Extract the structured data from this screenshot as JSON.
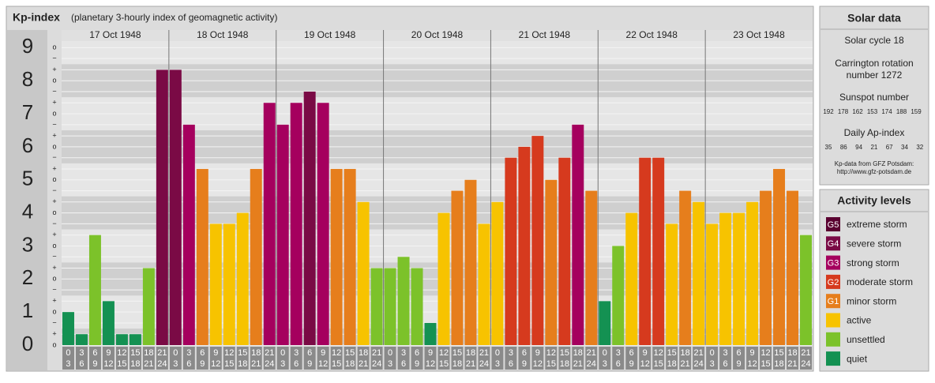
{
  "chart_data": {
    "type": "bar",
    "title": "Kp-index",
    "subtitle": "(planetary 3-hourly index of geomagnetic activity)",
    "days": [
      "17 Oct 1948",
      "18 Oct 1948",
      "19 Oct 1948",
      "20 Oct 1948",
      "21 Oct 1948",
      "22 Oct 1948",
      "23 Oct 1948"
    ],
    "interval_labels": [
      [
        "0",
        "3"
      ],
      [
        "3",
        "6"
      ],
      [
        "6",
        "9"
      ],
      [
        "9",
        "12"
      ],
      [
        "12",
        "15"
      ],
      [
        "15",
        "18"
      ],
      [
        "18",
        "21"
      ],
      [
        "21",
        "24"
      ]
    ],
    "values": [
      1,
      0.33,
      3.33,
      1.33,
      0.33,
      0.33,
      2.33,
      8.33,
      8.33,
      6.67,
      5.33,
      3.67,
      3.67,
      4,
      5.33,
      7.33,
      6.67,
      7.33,
      7.67,
      7.33,
      5.33,
      5.33,
      4.33,
      2.33,
      2.33,
      2.67,
      2.33,
      0.67,
      4,
      4.67,
      5,
      3.67,
      4.33,
      5.67,
      6,
      6.33,
      5,
      5.67,
      6.67,
      4.67,
      1.33,
      3,
      4,
      5.67,
      5.67,
      3.67,
      4.67,
      4.33,
      3.67,
      4,
      4,
      4.33,
      4.67,
      5.33,
      4.67,
      3.33
    ],
    "colors": [
      "#149152",
      "#149152",
      "#7cc22a",
      "#149152",
      "#149152",
      "#149152",
      "#7cc22a",
      "#7a0a45",
      "#7a0a45",
      "#a5005e",
      "#e67e1c",
      "#f7c300",
      "#f7c300",
      "#f7c300",
      "#e67e1c",
      "#a5005e",
      "#a5005e",
      "#a5005e",
      "#7a0a45",
      "#a5005e",
      "#e67e1c",
      "#e67e1c",
      "#f7c300",
      "#7cc22a",
      "#7cc22a",
      "#7cc22a",
      "#7cc22a",
      "#149152",
      "#f7c300",
      "#e67e1c",
      "#e67e1c",
      "#f7c300",
      "#f7c300",
      "#d63a1e",
      "#d63a1e",
      "#d63a1e",
      "#e67e1c",
      "#d63a1e",
      "#a5005e",
      "#e67e1c",
      "#149152",
      "#7cc22a",
      "#f7c300",
      "#d63a1e",
      "#d63a1e",
      "#f7c300",
      "#e67e1c",
      "#f7c300",
      "#f7c300",
      "#f7c300",
      "#f7c300",
      "#f7c300",
      "#e67e1c",
      "#e67e1c",
      "#e67e1c",
      "#7cc22a"
    ],
    "ylim": [
      0,
      9.2
    ],
    "yticks": [
      0,
      1,
      2,
      3,
      4,
      5,
      6,
      7,
      8,
      9
    ],
    "yticks_minor": [
      {
        "value": 0,
        "label": "o"
      },
      {
        "value": 0.33,
        "label": "+"
      },
      {
        "value": 0.67,
        "label": "−"
      },
      {
        "value": 1,
        "label": "o"
      },
      {
        "value": 1.33,
        "label": "+"
      },
      {
        "value": 1.67,
        "label": "−"
      },
      {
        "value": 2,
        "label": "o"
      },
      {
        "value": 2.33,
        "label": "+"
      },
      {
        "value": 2.67,
        "label": "−"
      },
      {
        "value": 3,
        "label": "o"
      },
      {
        "value": 3.33,
        "label": "+"
      },
      {
        "value": 3.67,
        "label": "−"
      },
      {
        "value": 4,
        "label": "o"
      },
      {
        "value": 4.33,
        "label": "+"
      },
      {
        "value": 4.67,
        "label": "−"
      },
      {
        "value": 5,
        "label": "o"
      },
      {
        "value": 5.33,
        "label": "+"
      },
      {
        "value": 5.67,
        "label": "−"
      },
      {
        "value": 6,
        "label": "o"
      },
      {
        "value": 6.33,
        "label": "+"
      },
      {
        "value": 6.67,
        "label": "−"
      },
      {
        "value": 7,
        "label": "o"
      },
      {
        "value": 7.33,
        "label": "+"
      },
      {
        "value": 7.67,
        "label": "−"
      },
      {
        "value": 8,
        "label": "o"
      },
      {
        "value": 8.33,
        "label": "+"
      },
      {
        "value": 8.67,
        "label": "−"
      },
      {
        "value": 9,
        "label": "o"
      }
    ],
    "grid": true
  },
  "solar_data": {
    "title": "Solar data",
    "solar_cycle": "Solar cycle 18",
    "carrington": [
      "Carrington rotation",
      "number 1272"
    ],
    "sunspot_label": "Sunspot number",
    "sunspot_numbers": [
      192,
      178,
      162,
      153,
      174,
      188,
      159
    ],
    "ap_label": "Daily Ap-index",
    "ap_index": [
      35,
      86,
      94,
      21,
      67,
      34,
      32
    ],
    "source": [
      "Kp-data from GFZ Potsdam:",
      "http://www.gfz-potsdam.de"
    ]
  },
  "activity_levels": {
    "title": "Activity levels",
    "items": [
      {
        "code": "G5",
        "name": "extreme storm",
        "color": "#5a0030"
      },
      {
        "code": "G4",
        "name": "severe storm",
        "color": "#7a0a45"
      },
      {
        "code": "G3",
        "name": "strong storm",
        "color": "#a5005e"
      },
      {
        "code": "G2",
        "name": "moderate storm",
        "color": "#d63a1e"
      },
      {
        "code": "G1",
        "name": "minor storm",
        "color": "#e67e1c"
      },
      {
        "name": "active",
        "color": "#f7c300"
      },
      {
        "name": "unsettled",
        "color": "#7cc22a"
      },
      {
        "name": "quiet",
        "color": "#149152"
      }
    ]
  }
}
